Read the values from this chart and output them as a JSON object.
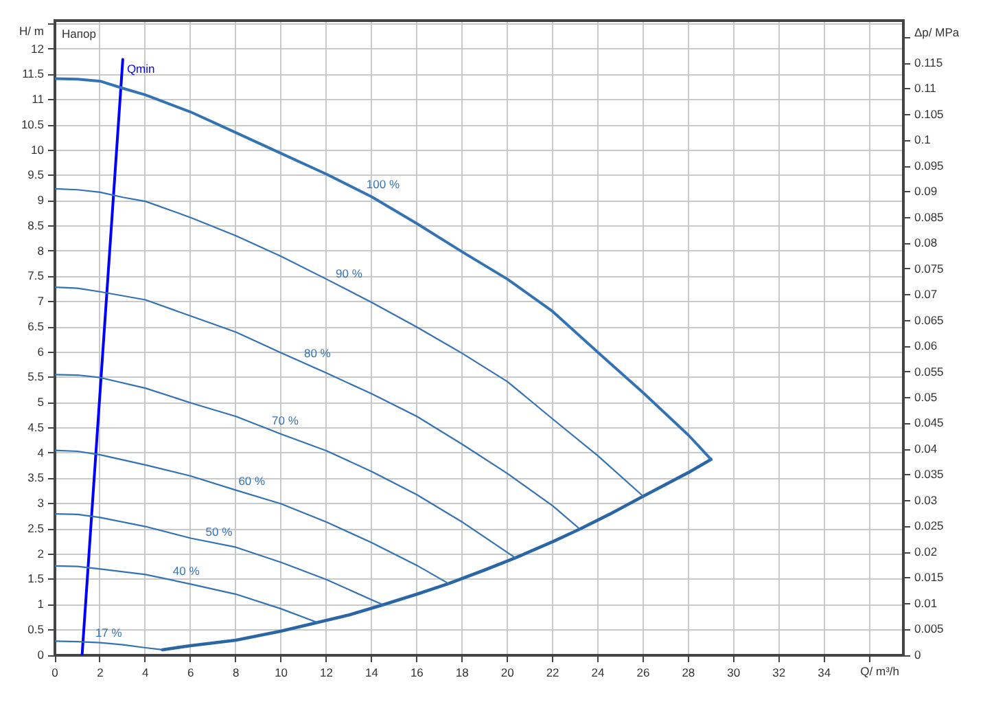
{
  "chart_data": {
    "type": "line",
    "xlabel": "Q/ m³/h",
    "ylabel": "H/ m",
    "y2label": "Δp/ MPa",
    "annotations": [
      "Напор"
    ],
    "xlim": [
      0,
      37.5
    ],
    "xticks": [
      0,
      2,
      4,
      6,
      8,
      10,
      12,
      14,
      16,
      18,
      20,
      22,
      24,
      26,
      28,
      30,
      32,
      34,
      {
        "value": 36,
        "label": null
      }
    ],
    "ylim": [
      0,
      12.57
    ],
    "yticks": [
      0,
      0.5,
      1,
      1.5,
      2,
      2.5,
      3,
      3.5,
      4,
      4.5,
      5,
      5.5,
      6,
      6.5,
      7,
      7.5,
      8,
      8.5,
      9,
      9.5,
      10,
      10.5,
      11,
      11.5,
      12,
      {
        "value": 12.5,
        "label": null
      }
    ],
    "y2lim": [
      0,
      0.1233
    ],
    "y2ticks": [
      0,
      0.005,
      0.01,
      0.015,
      0.02,
      0.025,
      0.03,
      0.035,
      0.04,
      0.045,
      0.05,
      0.055,
      0.06,
      0.065,
      0.07,
      0.075,
      0.08,
      0.085,
      0.09,
      0.095,
      0.1,
      0.105,
      0.11,
      0.115,
      {
        "value": 0.12,
        "label": null
      }
    ],
    "grid": true,
    "legend": false,
    "marker": "none",
    "line_style": "solid",
    "series": [
      {
        "name": "100 %",
        "color": "#3473b3",
        "x": [
          0,
          1,
          2,
          3,
          4,
          6,
          8,
          10,
          12,
          14,
          16,
          18,
          20,
          22,
          24,
          26,
          28,
          29
        ],
        "values": [
          11.42,
          11.41,
          11.37,
          11.23,
          11.1,
          10.76,
          10.35,
          9.94,
          9.53,
          9.08,
          8.55,
          7.99,
          7.45,
          6.81,
          6.0,
          5.2,
          4.36,
          3.88
        ]
      },
      {
        "name": "90 %",
        "color": "#3473b3",
        "x": [
          0,
          1,
          2,
          3,
          4,
          6,
          8,
          10,
          12,
          14,
          16,
          18,
          20,
          22,
          24,
          26
        ],
        "values": [
          9.24,
          9.22,
          9.17,
          9.07,
          8.99,
          8.67,
          8.31,
          7.9,
          7.45,
          6.99,
          6.5,
          5.98,
          5.42,
          4.68,
          3.95,
          3.15
        ]
      },
      {
        "name": "80 %",
        "color": "#3473b3",
        "x": [
          0,
          1,
          2,
          4,
          6,
          8,
          10,
          12,
          14,
          16,
          18,
          20,
          22,
          23.2
        ],
        "values": [
          7.29,
          7.27,
          7.2,
          7.04,
          6.72,
          6.4,
          5.99,
          5.59,
          5.18,
          4.73,
          4.18,
          3.6,
          2.96,
          2.5
        ]
      },
      {
        "name": "70 %",
        "color": "#3473b3",
        "x": [
          0,
          1,
          2,
          4,
          6,
          8,
          10,
          12,
          14,
          16,
          18,
          20.35
        ],
        "values": [
          5.56,
          5.55,
          5.5,
          5.29,
          5.0,
          4.73,
          4.38,
          4.05,
          3.64,
          3.18,
          2.64,
          1.93
        ]
      },
      {
        "name": "60 %",
        "color": "#3473b3",
        "x": [
          0,
          1,
          2,
          4,
          6,
          8,
          10,
          12,
          14,
          16,
          17.4
        ],
        "values": [
          4.06,
          4.04,
          3.97,
          3.77,
          3.55,
          3.27,
          3.0,
          2.64,
          2.23,
          1.78,
          1.42
        ]
      },
      {
        "name": "50 %",
        "color": "#3473b3",
        "x": [
          0,
          1,
          2,
          4,
          6,
          8,
          10,
          12,
          14,
          14.5
        ],
        "values": [
          2.8,
          2.79,
          2.73,
          2.55,
          2.32,
          2.14,
          1.84,
          1.5,
          1.1,
          1.0
        ]
      },
      {
        "name": "40 %",
        "color": "#3473b3",
        "x": [
          0,
          1,
          2,
          4,
          6,
          8,
          10,
          11.6
        ],
        "values": [
          1.77,
          1.76,
          1.71,
          1.6,
          1.41,
          1.21,
          0.92,
          0.65
        ]
      },
      {
        "name": "17 %",
        "color": "#3473b3",
        "x": [
          0,
          1,
          2,
          3,
          4,
          4.75
        ],
        "values": [
          0.28,
          0.27,
          0.25,
          0.21,
          0.15,
          0.11
        ]
      },
      {
        "color": "#2a66a6",
        "x": [
          4.75,
          6,
          8,
          10,
          11.6,
          13,
          14.5,
          16,
          17.4,
          19,
          20.35,
          22,
          23.2,
          24.5,
          26,
          28,
          29
        ],
        "values": [
          0.11,
          0.19,
          0.3,
          0.48,
          0.65,
          0.8,
          1.0,
          1.21,
          1.42,
          1.69,
          1.93,
          2.25,
          2.5,
          2.79,
          3.15,
          3.62,
          3.88
        ]
      },
      {
        "name": "Qmin",
        "color": "#0000ff",
        "x": [
          1.2,
          3.0
        ],
        "values": [
          0,
          11.8
        ]
      }
    ]
  }
}
